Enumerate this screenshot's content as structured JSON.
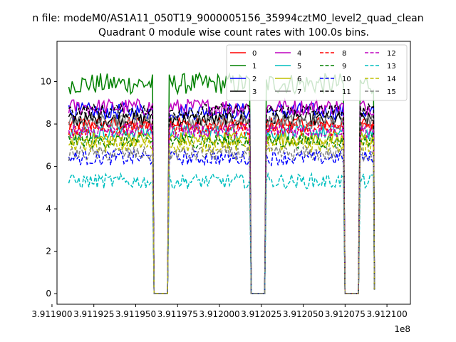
{
  "suptitle": "n file: modeM0/AS1A11_050T19_9000005156_35994cztM0_level2_quad_clean",
  "chart_data": {
    "type": "line",
    "title": "Quadrant 0 module wise count rates with 100.0s bins.",
    "xlabel": "",
    "ylabel": "",
    "x_offset_label": "1e8",
    "xlim": [
      391190.3,
      391211.4
    ],
    "ylim": [
      -0.5,
      11.9
    ],
    "x_ticks": [
      391190.0,
      391192.5,
      391195.0,
      391197.5,
      391200.0,
      391202.5,
      391205.0,
      391207.5,
      391210.0
    ],
    "x_tick_labels": [
      "3.911900",
      "3.911925",
      "3.911950",
      "3.911975",
      "3.912000",
      "3.912025",
      "3.912050",
      "3.912075",
      "3.912100"
    ],
    "y_ticks": [
      0,
      2,
      4,
      6,
      8,
      10
    ],
    "y_tick_labels": [
      "0",
      "2",
      "4",
      "6",
      "8",
      "10"
    ],
    "legend_position": "upper-right",
    "gaps": [
      [
        391196.0,
        391197.0
      ],
      [
        391201.8,
        391202.8
      ],
      [
        391207.4,
        391208.4
      ]
    ],
    "segments": [
      [
        391191.0,
        391196.0
      ],
      [
        391197.0,
        391201.8
      ],
      [
        391202.8,
        391207.4
      ],
      [
        391208.4,
        391209.2
      ]
    ],
    "series": [
      {
        "name": "0",
        "color": "#ff0000",
        "style": "solid",
        "level": 8.0,
        "noise": 0.35
      },
      {
        "name": "1",
        "color": "#008000",
        "style": "solid",
        "level": 9.9,
        "noise": 0.5
      },
      {
        "name": "2",
        "color": "#0000ff",
        "style": "solid",
        "level": 8.6,
        "noise": 0.4
      },
      {
        "name": "3",
        "color": "#000000",
        "style": "solid",
        "level": 8.2,
        "noise": 0.35
      },
      {
        "name": "4",
        "color": "#bf00bf",
        "style": "solid",
        "level": 8.8,
        "noise": 0.4
      },
      {
        "name": "5",
        "color": "#00bfbf",
        "style": "solid",
        "level": 7.6,
        "noise": 0.35
      },
      {
        "name": "6",
        "color": "#bfbf00",
        "style": "solid",
        "level": 7.3,
        "noise": 0.35
      },
      {
        "name": "7",
        "color": "#808080",
        "style": "solid",
        "level": 8.1,
        "noise": 0.35
      },
      {
        "name": "8",
        "color": "#ff0000",
        "style": "dashed",
        "level": 7.8,
        "noise": 0.35
      },
      {
        "name": "9",
        "color": "#008000",
        "style": "dashed",
        "level": 7.2,
        "noise": 0.35
      },
      {
        "name": "10",
        "color": "#0000ff",
        "style": "dashed",
        "level": 6.4,
        "noise": 0.35
      },
      {
        "name": "11",
        "color": "#000000",
        "style": "dashed",
        "level": 8.6,
        "noise": 0.35
      },
      {
        "name": "12",
        "color": "#bf00bf",
        "style": "dashed",
        "level": 7.7,
        "noise": 0.35
      },
      {
        "name": "13",
        "color": "#00bfbf",
        "style": "dashed",
        "level": 5.3,
        "noise": 0.35
      },
      {
        "name": "14",
        "color": "#bfbf00",
        "style": "dashed",
        "level": 7.0,
        "noise": 0.35
      },
      {
        "name": "15",
        "color": "#808080",
        "style": "dashed",
        "level": 6.6,
        "noise": 0.35
      }
    ]
  }
}
